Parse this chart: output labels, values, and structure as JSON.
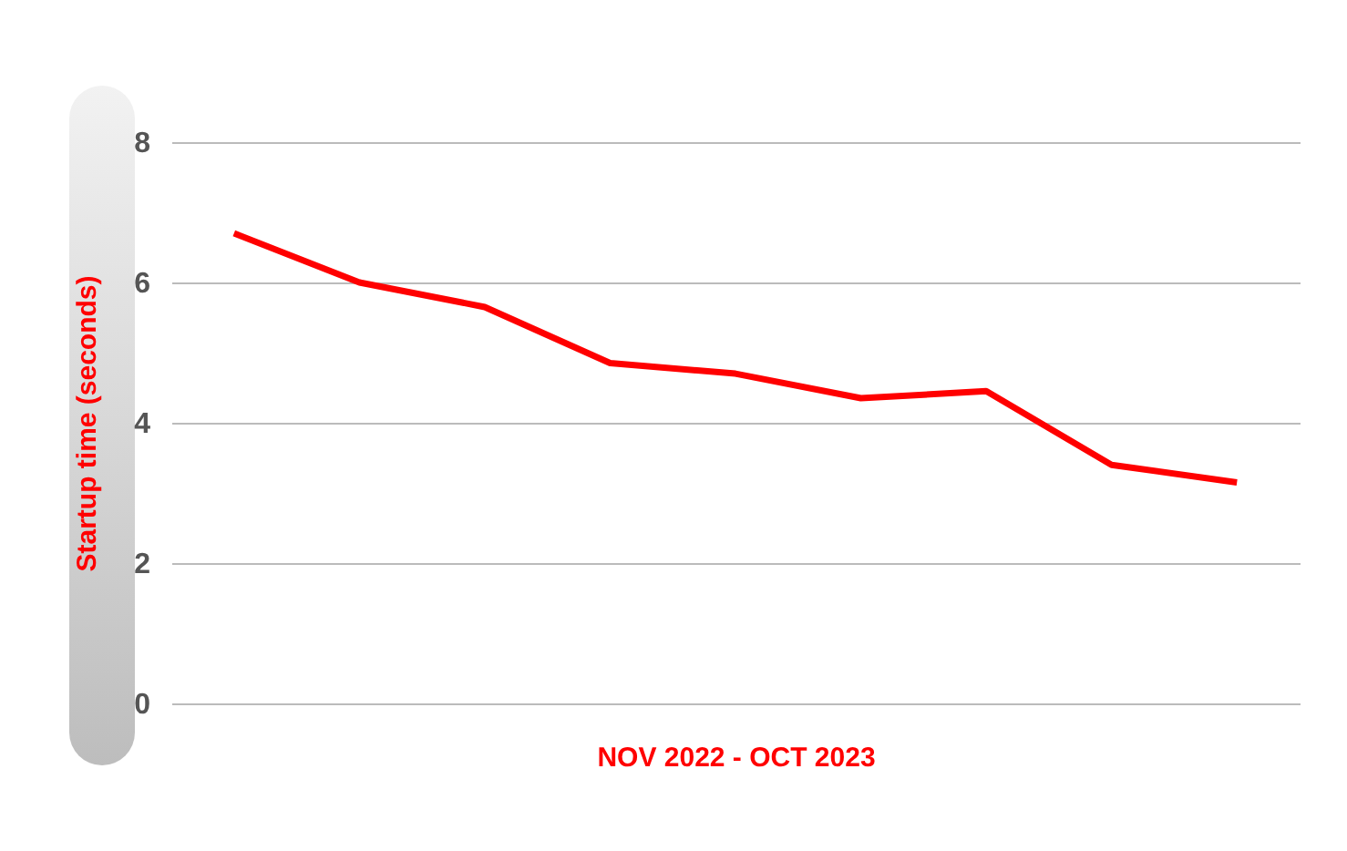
{
  "chart_data": {
    "type": "line",
    "xlabel": "NOV 2022 - OCT 2023",
    "ylabel": "Startup time (seconds)",
    "categories": [
      null,
      null,
      null,
      null,
      null,
      null,
      null,
      null,
      null
    ],
    "series": [
      {
        "color": "#ff0000",
        "values": [
          6.7,
          6.0,
          5.65,
          4.85,
          4.7,
          4.35,
          4.45,
          3.4,
          3.15
        ]
      }
    ],
    "ylim": [
      0,
      8
    ],
    "yticks": [
      0,
      2,
      4,
      6,
      8
    ],
    "grid": "y",
    "tick_labels": "y",
    "legend": false,
    "marker": "none",
    "line_style": "solid"
  }
}
